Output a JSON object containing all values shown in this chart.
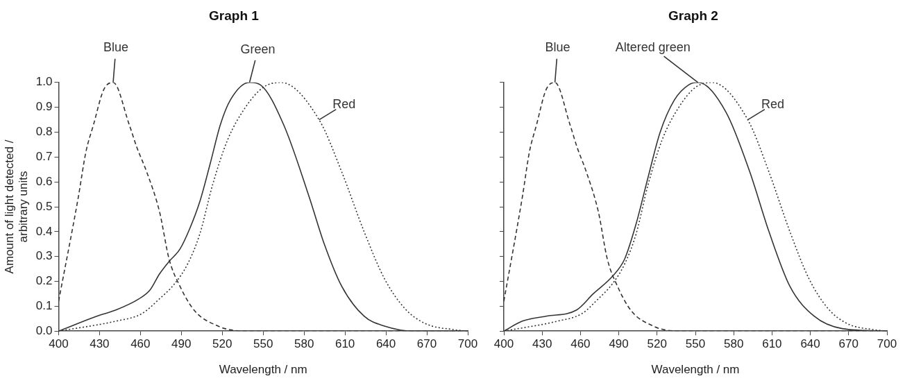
{
  "chart_data": [
    {
      "type": "line",
      "title": "Graph 1",
      "xlabel": "Wavelength / nm",
      "ylabel": "Amount of light detected / arbitrary units",
      "xlim": [
        400,
        700
      ],
      "xticks": [
        400,
        430,
        460,
        490,
        520,
        550,
        580,
        610,
        640,
        670,
        700
      ],
      "ylim": [
        0,
        1
      ],
      "yticks": [
        {
          "value": 0,
          "label": "0.0"
        },
        0.1,
        0.2,
        0.3,
        0.4,
        0.5,
        0.6,
        0.7,
        0.8,
        0.9,
        {
          "value": 1,
          "label": "1.0"
        }
      ],
      "grid": false,
      "legend": false,
      "marker": "none",
      "series": [
        {
          "name": "Blue",
          "color": "#333333",
          "line_style": "dashed",
          "x": [
            400,
            414.5,
            420,
            425.6,
            433,
            440,
            451.8,
            457.3,
            464.6,
            474,
            481,
            489,
            500,
            517,
            526,
            540,
            700
          ],
          "values": [
            0.12,
            0.54,
            0.72,
            0.83,
            0.97,
            1.0,
            0.83,
            0.74,
            0.64,
            0.48,
            0.29,
            0.18,
            0.08,
            0.02,
            0.005,
            0,
            0
          ]
        },
        {
          "name": "Green",
          "color": "#333333",
          "line_style": "solid",
          "x": [
            400,
            428,
            442,
            459,
            467,
            474,
            481,
            489,
            496,
            503.5,
            511,
            518.6,
            526,
            540,
            548,
            565,
            583.7,
            594.8,
            607.6,
            624,
            639,
            660,
            700
          ],
          "values": [
            0,
            0.06,
            0.085,
            0.13,
            0.165,
            0.23,
            0.28,
            0.33,
            0.41,
            0.52,
            0.67,
            0.83,
            0.93,
            1.0,
            0.99,
            0.83,
            0.54,
            0.35,
            0.18,
            0.06,
            0.02,
            0,
            0
          ]
        },
        {
          "name": "Red",
          "color": "#333333",
          "line_style": "dotted",
          "x": [
            400,
            442,
            461,
            474,
            485,
            494.6,
            503.5,
            513,
            524,
            537,
            550,
            563,
            591,
            607.6,
            624,
            639,
            654,
            669,
            691,
            700
          ],
          "values": [
            0,
            0.04,
            0.07,
            0.13,
            0.19,
            0.27,
            0.39,
            0.59,
            0.77,
            0.9,
            0.98,
            1.0,
            0.85,
            0.64,
            0.4,
            0.21,
            0.09,
            0.03,
            0.005,
            0
          ]
        }
      ]
    },
    {
      "type": "line",
      "title": "Graph 2",
      "xlabel": "Wavelength / nm",
      "tick_labels": "x",
      "xlim": [
        400,
        700
      ],
      "xticks": [
        400,
        430,
        460,
        490,
        520,
        550,
        580,
        610,
        640,
        670,
        700
      ],
      "ylim": [
        0,
        1
      ],
      "yticks": [
        0,
        0.1,
        0.2,
        0.3,
        0.4,
        0.5,
        0.6,
        0.7,
        0.8,
        0.9,
        1
      ],
      "grid": false,
      "legend": false,
      "marker": "none",
      "series": [
        {
          "name": "Blue",
          "color": "#333333",
          "line_style": "dashed",
          "x": [
            400,
            414.5,
            420,
            425.6,
            433,
            440,
            451.8,
            457.3,
            464.6,
            474,
            481,
            489,
            500,
            517,
            526,
            540,
            700
          ],
          "values": [
            0.12,
            0.54,
            0.72,
            0.83,
            0.97,
            1.0,
            0.83,
            0.74,
            0.64,
            0.48,
            0.29,
            0.18,
            0.08,
            0.02,
            0.005,
            0,
            0
          ]
        },
        {
          "name": "Altered green",
          "color": "#333333",
          "line_style": "solid",
          "x": [
            400,
            414.5,
            433,
            457,
            470,
            485,
            494.6,
            503.5,
            513,
            522.4,
            533.6,
            544.7,
            552,
            574,
            592.6,
            607.6,
            624,
            643,
            665,
            700
          ],
          "values": [
            0,
            0.04,
            0.06,
            0.085,
            0.15,
            0.22,
            0.29,
            0.43,
            0.62,
            0.8,
            0.93,
            0.99,
            1.0,
            0.88,
            0.64,
            0.4,
            0.18,
            0.06,
            0.01,
            0
          ]
        },
        {
          "name": "Red",
          "color": "#333333",
          "line_style": "dotted",
          "x": [
            400,
            442,
            461,
            474,
            485,
            494.6,
            503.5,
            513,
            524,
            537,
            550,
            563,
            591,
            607.6,
            624,
            639,
            654,
            669,
            691,
            700
          ],
          "values": [
            0,
            0.04,
            0.07,
            0.13,
            0.19,
            0.27,
            0.39,
            0.59,
            0.77,
            0.9,
            0.98,
            1.0,
            0.85,
            0.64,
            0.4,
            0.21,
            0.09,
            0.03,
            0.005,
            0
          ]
        }
      ]
    }
  ]
}
